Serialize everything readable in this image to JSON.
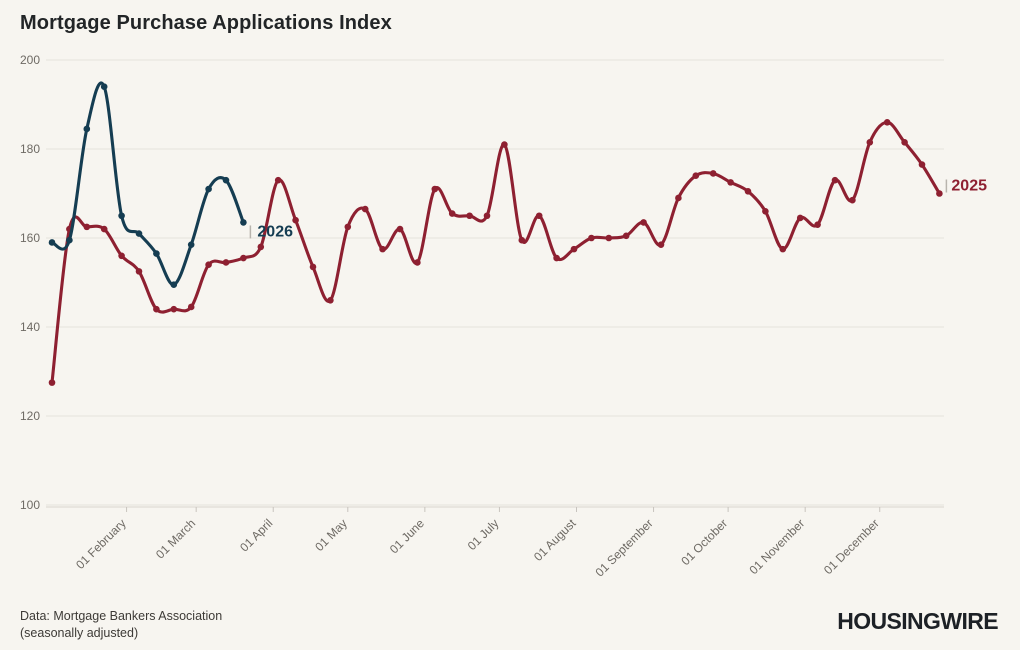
{
  "title": "Mortgage Purchase Applications Index",
  "footer": {
    "source_line1": "Data: Mortgage Bankers Association",
    "source_line2": "(seasonally adjusted)",
    "logo": "HOUSINGWIRE"
  },
  "colors": {
    "background": "#f7f5f0",
    "series_2025": "#8e2031",
    "series_2026": "#153d52",
    "grid": "#e6e2db",
    "axis_line": "#d9d5ce",
    "tick": "#c8c4be",
    "axis_text": "#6e6a64",
    "title_text": "#222527",
    "footer_text": "#3d3a36",
    "logo_text": "#1d2126",
    "label_connector": "#b8b4ad"
  },
  "chart_data": {
    "type": "line",
    "title": "Mortgage Purchase Applications Index",
    "xlabel": "",
    "ylabel": "",
    "ylim": [
      100,
      200
    ],
    "y_ticks": [
      100,
      120,
      140,
      160,
      180,
      200
    ],
    "grid": "horizontal",
    "x_unit": "week (weekly data points starting early January)",
    "x_ticks": [
      {
        "label": "01 February",
        "day": 32
      },
      {
        "label": "01 March",
        "day": 60
      },
      {
        "label": "01 April",
        "day": 91
      },
      {
        "label": "01 May",
        "day": 121
      },
      {
        "label": "01 June",
        "day": 152
      },
      {
        "label": "01 July",
        "day": 182
      },
      {
        "label": "01 August",
        "day": 213
      },
      {
        "label": "01 September",
        "day": 244
      },
      {
        "label": "01 October",
        "day": 274
      },
      {
        "label": "01 November",
        "day": 305
      },
      {
        "label": "01 December",
        "day": 335
      }
    ],
    "legend_position": "end-of-line labels",
    "series": [
      {
        "name": "2025",
        "color": "#8e2031",
        "start_week": 0,
        "values": [
          127.5,
          162,
          162.5,
          162,
          156,
          152.5,
          144,
          144,
          144.5,
          154,
          154.5,
          155.5,
          158,
          173,
          164,
          153.5,
          146,
          162.5,
          166.5,
          157.5,
          162,
          154.5,
          171,
          165.5,
          165,
          165,
          181,
          159.5,
          165,
          155.5,
          157.5,
          160,
          160,
          160.5,
          163.5,
          158.5,
          169,
          174,
          174.5,
          172.5,
          170.5,
          166,
          157.5,
          164.5,
          163,
          173,
          168.5,
          181.5,
          186,
          181.5,
          176.5,
          170
        ],
        "label_offset": [
          12,
          -3
        ]
      },
      {
        "name": "2026",
        "color": "#153d52",
        "start_week": 0,
        "values": [
          159,
          159.5,
          184.5,
          194,
          165,
          161,
          156.5,
          149.5,
          158.5,
          171,
          173,
          163.5
        ],
        "label_offset": [
          14,
          14
        ]
      }
    ]
  }
}
